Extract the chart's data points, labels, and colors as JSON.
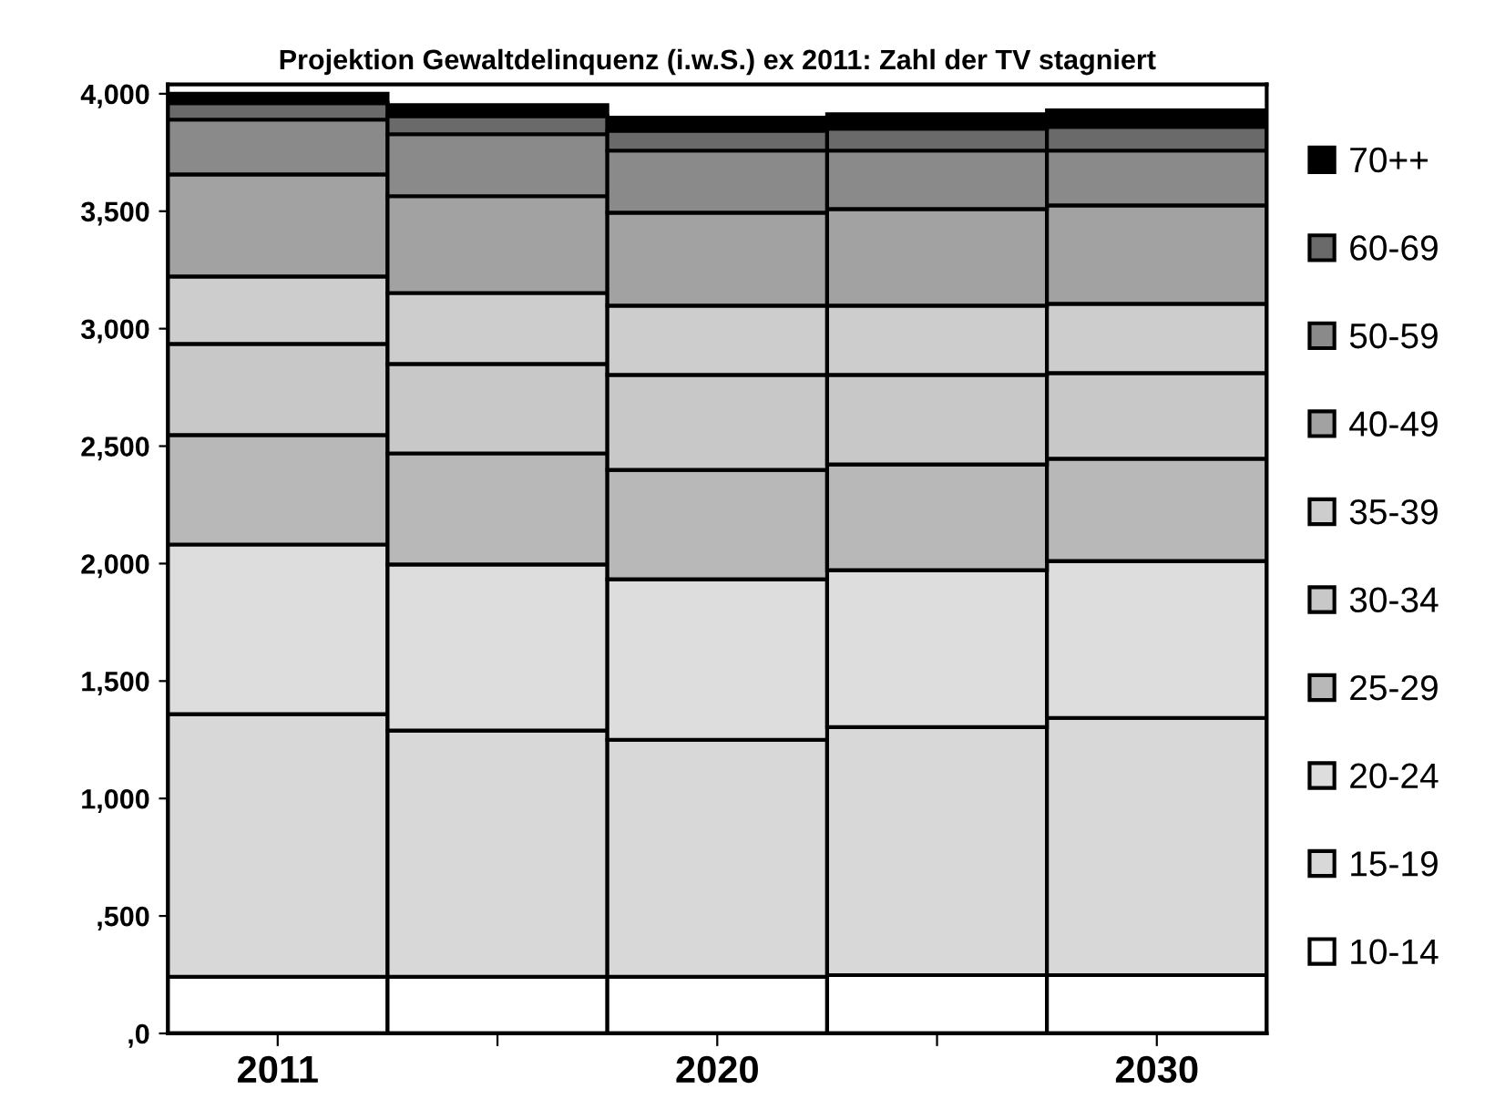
{
  "chart_data": {
    "type": "bar",
    "stacked": true,
    "title": "Projektion Gewaltdelinquenz (i.w.S.) ex 2011: Zahl der TV stagniert",
    "categories": [
      "2011",
      null,
      "2020",
      null,
      "2030"
    ],
    "series": [
      {
        "name": "10-14",
        "color": "#ffffff",
        "values": [
          241,
          241,
          241,
          248,
          248
        ]
      },
      {
        "name": "15-19",
        "color": "#d8d8d8",
        "values": [
          1118,
          1048,
          1009,
          1056,
          1095
        ]
      },
      {
        "name": "20-24",
        "color": "#dddddd",
        "values": [
          722,
          707,
          683,
          668,
          668
        ]
      },
      {
        "name": "25-29",
        "color": "#b8b8b8",
        "values": [
          466,
          473,
          466,
          450,
          435
        ]
      },
      {
        "name": "30-34",
        "color": "#c8c8c8",
        "values": [
          388,
          381,
          404,
          381,
          365
        ]
      },
      {
        "name": "35-39",
        "color": "#cdcdcd",
        "values": [
          287,
          302,
          295,
          295,
          295
        ]
      },
      {
        "name": "40-49",
        "color": "#a2a2a2",
        "values": [
          435,
          412,
          396,
          411,
          419
        ]
      },
      {
        "name": "50-59",
        "color": "#8a8a8a",
        "values": [
          233,
          264,
          264,
          249,
          233
        ]
      },
      {
        "name": "60-69",
        "color": "#6a6a6a",
        "values": [
          70,
          77,
          85,
          93,
          101
        ]
      },
      {
        "name": "70++",
        "color": "#000000",
        "values": [
          40,
          47,
          55,
          62,
          70
        ]
      }
    ],
    "ylim": [
      0,
      4040
    ],
    "yticks": [
      {
        "value": 0,
        "label": ",0"
      },
      {
        "value": 500,
        "label": ",500"
      },
      {
        "value": 1000,
        "label": "1,000"
      },
      {
        "value": 1500,
        "label": "1,500"
      },
      {
        "value": 2000,
        "label": "2,000"
      },
      {
        "value": 2500,
        "label": "2,500"
      },
      {
        "value": 3000,
        "label": "3,000"
      },
      {
        "value": 3500,
        "label": "3,500"
      },
      {
        "value": 4000,
        "label": "4,000"
      }
    ],
    "legend": "right"
  }
}
